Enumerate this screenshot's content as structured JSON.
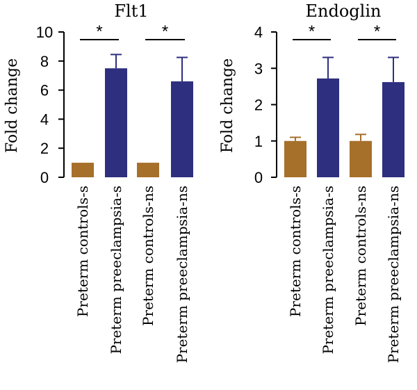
{
  "chart_data": [
    {
      "type": "bar",
      "title": "Flt1",
      "ylabel": "Fold change",
      "xlabel": "",
      "ylim": [
        0,
        10
      ],
      "yticks": [
        0,
        2,
        4,
        6,
        8,
        10
      ],
      "categories": [
        "Preterm controls-s",
        "Preterm preeclampsia-s",
        "Preterm controls-ns",
        "Preterm preeclampsia-ns"
      ],
      "values": [
        1.0,
        7.5,
        1.0,
        6.6
      ],
      "errors": [
        0,
        0.95,
        0,
        1.65
      ],
      "bar_colors": [
        "#a66f2a",
        "#2e2f7e",
        "#a66f2a",
        "#2e2f7e"
      ],
      "significance": [
        {
          "from": 0,
          "to": 1,
          "label": "*"
        },
        {
          "from": 2,
          "to": 3,
          "label": "*"
        }
      ]
    },
    {
      "type": "bar",
      "title": "Endoglin",
      "ylabel": "Fold change",
      "xlabel": "",
      "ylim": [
        0,
        4
      ],
      "yticks": [
        0,
        1,
        2,
        3,
        4
      ],
      "categories": [
        "Preterm controls-s",
        "Preterm preeclampsia-s",
        "Preterm controls-ns",
        "Preterm preeclampsia-ns"
      ],
      "values": [
        1.0,
        2.72,
        1.0,
        2.62
      ],
      "errors": [
        0.1,
        0.58,
        0.18,
        0.68
      ],
      "bar_colors": [
        "#a66f2a",
        "#2e2f7e",
        "#a66f2a",
        "#2e2f7e"
      ],
      "significance": [
        {
          "from": 0,
          "to": 1,
          "label": "*"
        },
        {
          "from": 2,
          "to": 3,
          "label": "*"
        }
      ]
    }
  ]
}
